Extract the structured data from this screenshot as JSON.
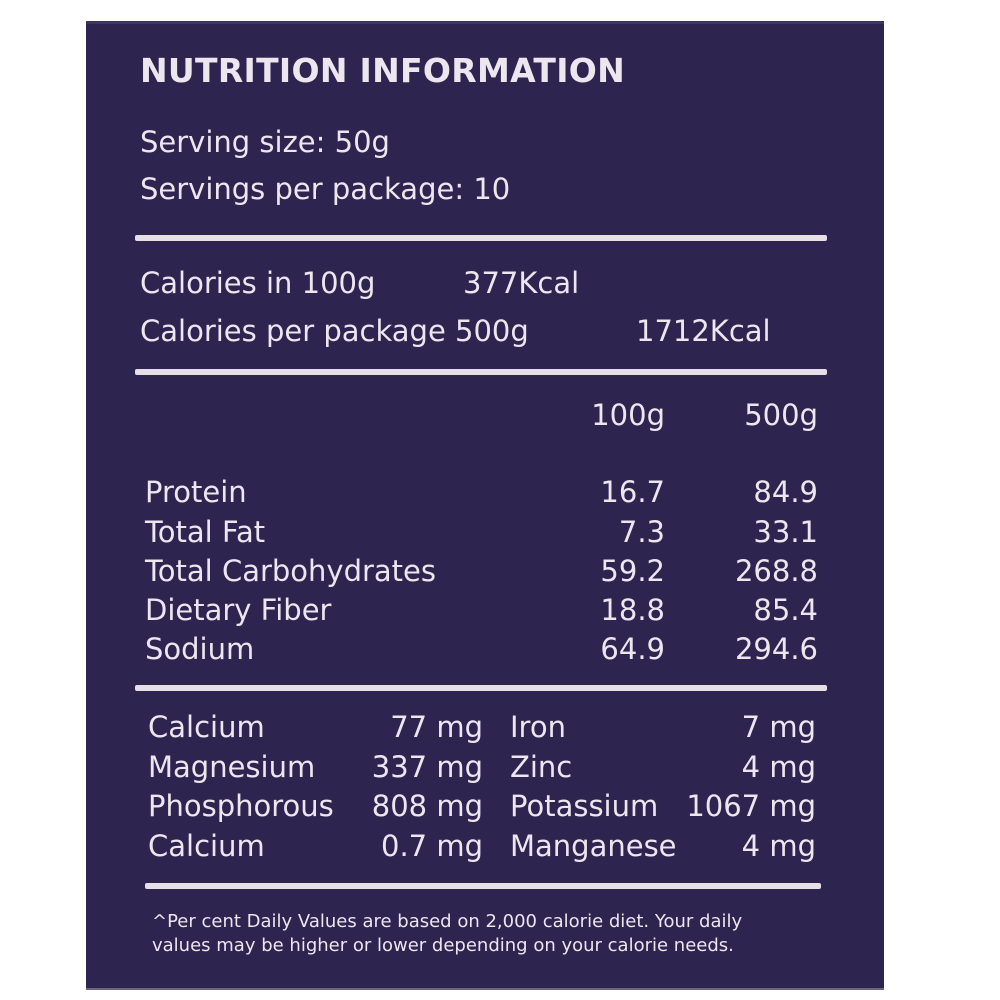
{
  "title": "NUTRITION INFORMATION",
  "serving_size": "Serving size: 50g",
  "servings_per_package": "Servings per package: 10",
  "calories": [
    {
      "label": "Calories in 100g",
      "value": "377Kcal"
    },
    {
      "label": "Calories per package 500g",
      "value": "1712Kcal"
    }
  ],
  "columns": [
    "100g",
    "500g"
  ],
  "nutrients": [
    {
      "name": "Protein",
      "per100": "16.7",
      "per500": "84.9"
    },
    {
      "name": "Total Fat",
      "per100": "7.3",
      "per500": "33.1"
    },
    {
      "name": "Total Carbohydrates",
      "per100": "59.2",
      "per500": "268.8"
    },
    {
      "name": "Dietary Fiber",
      "per100": "18.8",
      "per500": "85.4"
    },
    {
      "name": "Sodium",
      "per100": "64.9",
      "per500": "294.6"
    }
  ],
  "minerals": [
    {
      "name1": "Calcium",
      "value1": "77 mg",
      "name2": "Iron",
      "value2": "7 mg"
    },
    {
      "name1": "Magnesium",
      "value1": "337 mg",
      "name2": "Zinc",
      "value2": "4 mg"
    },
    {
      "name1": "Phosphorous",
      "value1": "808 mg",
      "name2": "Potassium",
      "value2": "1067 mg"
    },
    {
      "name1": "Calcium",
      "value1": "0.7 mg",
      "name2": "Manganese",
      "value2": "4 mg"
    }
  ],
  "footnote": [
    "^Per cent Daily Values are based on 2,000 calorie diet. Your daily",
    "values may be higher or lower depending on your calorie needs."
  ],
  "colors": {
    "background": "#2d2450",
    "text": "#ece6ee"
  }
}
